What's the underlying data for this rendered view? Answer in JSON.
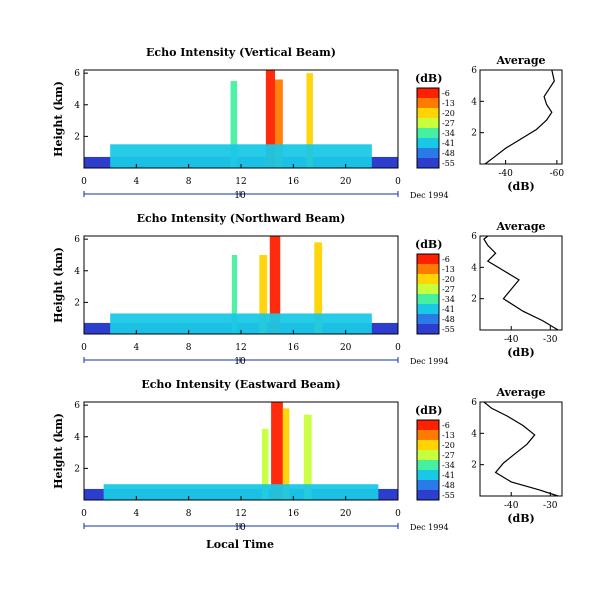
{
  "footer_label": "Local Time",
  "colorbar": {
    "unit": "(dB)",
    "levels": [
      "-6",
      "-13",
      "-20",
      "-27",
      "-34",
      "-41",
      "-48",
      "-55"
    ],
    "colors": [
      "#ff2000",
      "#ff7a00",
      "#ffd400",
      "#c8ff3c",
      "#46f0a0",
      "#19c8e6",
      "#2a7ae8",
      "#2d3ecf"
    ]
  },
  "chart_data": [
    {
      "type": "heatmap",
      "title": "Echo Intensity (Vertical Beam)",
      "ylabel": "Height (km)",
      "x_ticks": [
        "0",
        "4",
        "8",
        "12",
        "16",
        "20",
        "0"
      ],
      "y_ticks": [
        "2",
        "4",
        "6"
      ],
      "xlim": [
        0,
        24
      ],
      "ylim": [
        0,
        6.2
      ],
      "date_tick": "10",
      "date_label": "Dec 1994",
      "bands": [
        {
          "t0": 13.9,
          "t1": 14.6,
          "top": 6.2,
          "level": 0
        },
        {
          "t0": 14.6,
          "t1": 15.2,
          "top": 5.6,
          "level": 1
        },
        {
          "t0": 17.0,
          "t1": 17.5,
          "top": 6.0,
          "level": 2
        },
        {
          "t0": 11.2,
          "t1": 11.7,
          "top": 5.5,
          "level": 4
        },
        {
          "t0": 2.0,
          "t1": 22.0,
          "top": 1.5,
          "level": 5
        }
      ],
      "average": {
        "title": "Average",
        "xlabel": "(dB)",
        "x_ticks": [
          "-40",
          "-60"
        ],
        "y_ticks": [
          "2",
          "4",
          "6"
        ],
        "xlim": [
          -30,
          -62
        ],
        "ylim": [
          0,
          6
        ],
        "x": [
          -32,
          -36,
          -40,
          -45,
          -52,
          -56,
          -58,
          -56,
          -55,
          -57,
          -59,
          -58
        ],
        "y": [
          0.0,
          0.5,
          1.0,
          1.5,
          2.2,
          2.8,
          3.3,
          3.8,
          4.3,
          4.8,
          5.3,
          6.0
        ]
      }
    },
    {
      "type": "heatmap",
      "title": "Echo Intensity (Northward Beam)",
      "ylabel": "Height (km)",
      "x_ticks": [
        "0",
        "4",
        "8",
        "12",
        "16",
        "20",
        "0"
      ],
      "y_ticks": [
        "2",
        "4",
        "6"
      ],
      "xlim": [
        0,
        24
      ],
      "ylim": [
        0,
        6.2
      ],
      "date_tick": "10",
      "date_label": "Dec 1994",
      "bands": [
        {
          "t0": 14.2,
          "t1": 15.0,
          "top": 6.2,
          "level": 0
        },
        {
          "t0": 13.4,
          "t1": 14.0,
          "top": 5.0,
          "level": 2
        },
        {
          "t0": 17.6,
          "t1": 18.2,
          "top": 5.8,
          "level": 2
        },
        {
          "t0": 11.3,
          "t1": 11.7,
          "top": 5.0,
          "level": 4
        },
        {
          "t0": 2.0,
          "t1": 22.0,
          "top": 1.3,
          "level": 5
        }
      ],
      "average": {
        "title": "Average",
        "xlabel": "(dB)",
        "x_ticks": [
          "-40",
          "-30"
        ],
        "y_ticks": [
          "2",
          "4",
          "6"
        ],
        "xlim": [
          -48,
          -27
        ],
        "ylim": [
          0,
          6
        ],
        "x": [
          -28,
          -32,
          -37,
          -42,
          -40,
          -38,
          -42,
          -46,
          -44,
          -46,
          -47,
          -46
        ],
        "y": [
          0.0,
          0.6,
          1.2,
          2.0,
          2.6,
          3.2,
          3.8,
          4.4,
          4.9,
          5.4,
          5.8,
          6.0
        ]
      }
    },
    {
      "type": "heatmap",
      "title": "Echo Intensity (Eastward Beam)",
      "ylabel": "Height (km)",
      "x_ticks": [
        "0",
        "4",
        "8",
        "12",
        "16",
        "20",
        "0"
      ],
      "y_ticks": [
        "2",
        "4",
        "6"
      ],
      "xlim": [
        0,
        24
      ],
      "ylim": [
        0,
        6.2
      ],
      "date_tick": "10",
      "date_label": "Dec 1994",
      "bands": [
        {
          "t0": 14.3,
          "t1": 15.2,
          "top": 6.2,
          "level": 0
        },
        {
          "t0": 15.2,
          "t1": 15.7,
          "top": 5.8,
          "level": 2
        },
        {
          "t0": 13.6,
          "t1": 14.1,
          "top": 4.5,
          "level": 3
        },
        {
          "t0": 16.8,
          "t1": 17.4,
          "top": 5.4,
          "level": 3
        },
        {
          "t0": 1.5,
          "t1": 22.5,
          "top": 1.0,
          "level": 5
        }
      ],
      "average": {
        "title": "Average",
        "xlabel": "(dB)",
        "x_ticks": [
          "-40",
          "-30"
        ],
        "y_ticks": [
          "2",
          "4",
          "6"
        ],
        "xlim": [
          -48,
          -27
        ],
        "ylim": [
          0,
          6
        ],
        "x": [
          -28,
          -33,
          -40,
          -44,
          -42,
          -39,
          -36,
          -34,
          -37,
          -41,
          -45,
          -47
        ],
        "y": [
          0.0,
          0.4,
          0.9,
          1.5,
          2.1,
          2.7,
          3.3,
          3.9,
          4.5,
          5.1,
          5.6,
          6.0
        ]
      }
    }
  ]
}
